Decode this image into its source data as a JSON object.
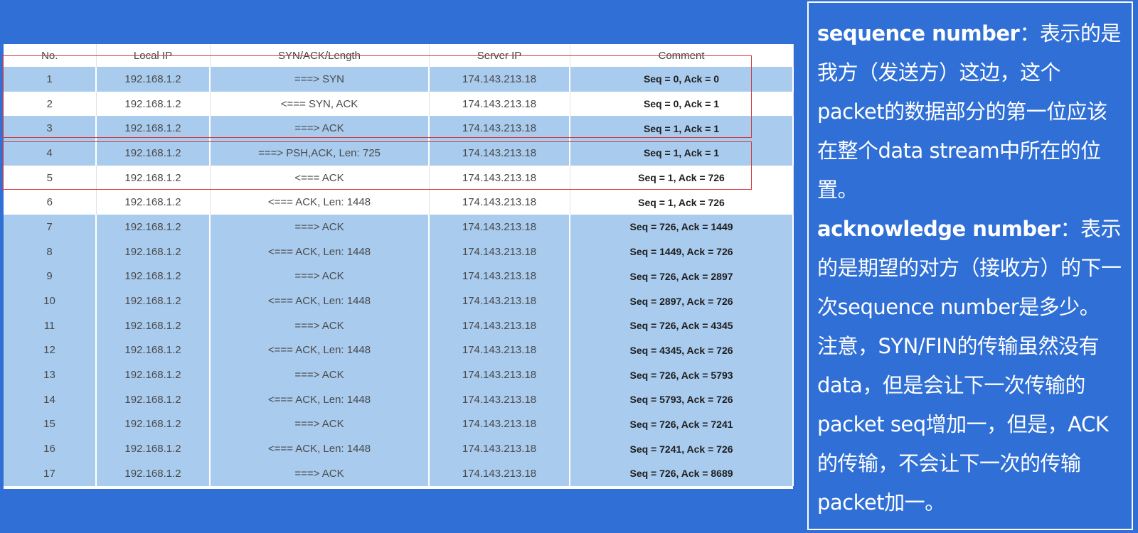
{
  "table": {
    "headers": [
      "No.",
      "Local IP",
      "SYN/ACK/Length",
      "Server IP",
      "Comment"
    ],
    "rows": [
      {
        "no": "1",
        "local_ip": "192.168.1.2",
        "flags": "===> SYN",
        "server_ip": "174.143.213.18",
        "comment": "Seq = 0, Ack = 0"
      },
      {
        "no": "2",
        "local_ip": "192.168.1.2",
        "flags": "<=== SYN, ACK",
        "server_ip": "174.143.213.18",
        "comment": "Seq = 0, Ack = 1"
      },
      {
        "no": "3",
        "local_ip": "192.168.1.2",
        "flags": "===> ACK",
        "server_ip": "174.143.213.18",
        "comment": "Seq = 1, Ack = 1"
      },
      {
        "no": "4",
        "local_ip": "192.168.1.2",
        "flags": "===> PSH,ACK, Len: 725",
        "server_ip": "174.143.213.18",
        "comment": "Seq = 1, Ack = 1"
      },
      {
        "no": "5",
        "local_ip": "192.168.1.2",
        "flags": "<=== ACK",
        "server_ip": "174.143.213.18",
        "comment": "Seq = 1, Ack = 726"
      },
      {
        "no": "6",
        "local_ip": "192.168.1.2",
        "flags": "<=== ACK, Len: 1448",
        "server_ip": "174.143.213.18",
        "comment": "Seq = 1, Ack = 726"
      },
      {
        "no": "7",
        "local_ip": "192.168.1.2",
        "flags": "===> ACK",
        "server_ip": "174.143.213.18",
        "comment": "Seq = 726, Ack = 1449"
      },
      {
        "no": "8",
        "local_ip": "192.168.1.2",
        "flags": "<=== ACK, Len: 1448",
        "server_ip": "174.143.213.18",
        "comment": "Seq = 1449, Ack = 726"
      },
      {
        "no": "9",
        "local_ip": "192.168.1.2",
        "flags": "===> ACK",
        "server_ip": "174.143.213.18",
        "comment": "Seq = 726, Ack = 2897"
      },
      {
        "no": "10",
        "local_ip": "192.168.1.2",
        "flags": "<=== ACK, Len: 1448",
        "server_ip": "174.143.213.18",
        "comment": "Seq = 2897, Ack = 726"
      },
      {
        "no": "11",
        "local_ip": "192.168.1.2",
        "flags": "===> ACK",
        "server_ip": "174.143.213.18",
        "comment": "Seq = 726, Ack = 4345"
      },
      {
        "no": "12",
        "local_ip": "192.168.1.2",
        "flags": "<=== ACK, Len: 1448",
        "server_ip": "174.143.213.18",
        "comment": "Seq = 4345, Ack = 726"
      },
      {
        "no": "13",
        "local_ip": "192.168.1.2",
        "flags": "===> ACK",
        "server_ip": "174.143.213.18",
        "comment": "Seq = 726, Ack = 5793"
      },
      {
        "no": "14",
        "local_ip": "192.168.1.2",
        "flags": "<=== ACK, Len: 1448",
        "server_ip": "174.143.213.18",
        "comment": "Seq = 5793, Ack = 726"
      },
      {
        "no": "15",
        "local_ip": "192.168.1.2",
        "flags": "===> ACK",
        "server_ip": "174.143.213.18",
        "comment": "Seq = 726, Ack = 7241"
      },
      {
        "no": "16",
        "local_ip": "192.168.1.2",
        "flags": "<=== ACK, Len: 1448",
        "server_ip": "174.143.213.18",
        "comment": "Seq = 7241, Ack = 726"
      },
      {
        "no": "17",
        "local_ip": "192.168.1.2",
        "flags": "===> ACK",
        "server_ip": "174.143.213.18",
        "comment": "Seq = 726, Ack = 8689"
      }
    ]
  },
  "notes": {
    "seq_term": "sequence number",
    "seq_desc": "：表示的是我方（发送方）这边，这个packet的数据部分的第一位应该在整个data stream中所在的位置。",
    "ack_term": "acknowledge number",
    "ack_desc": "：表示的是期望的对方（接收方）的下一次sequence number是多少。",
    "caution": "注意，SYN/FIN的传输虽然没有data，但是会让下一次传输的packet seq增加一，但是，ACK的传输，不会让下一次的传输packet加一。"
  },
  "colors": {
    "background": "#2f6fd6",
    "row_blue": "#a9cbee",
    "highlight_red": "#d23a3a"
  }
}
